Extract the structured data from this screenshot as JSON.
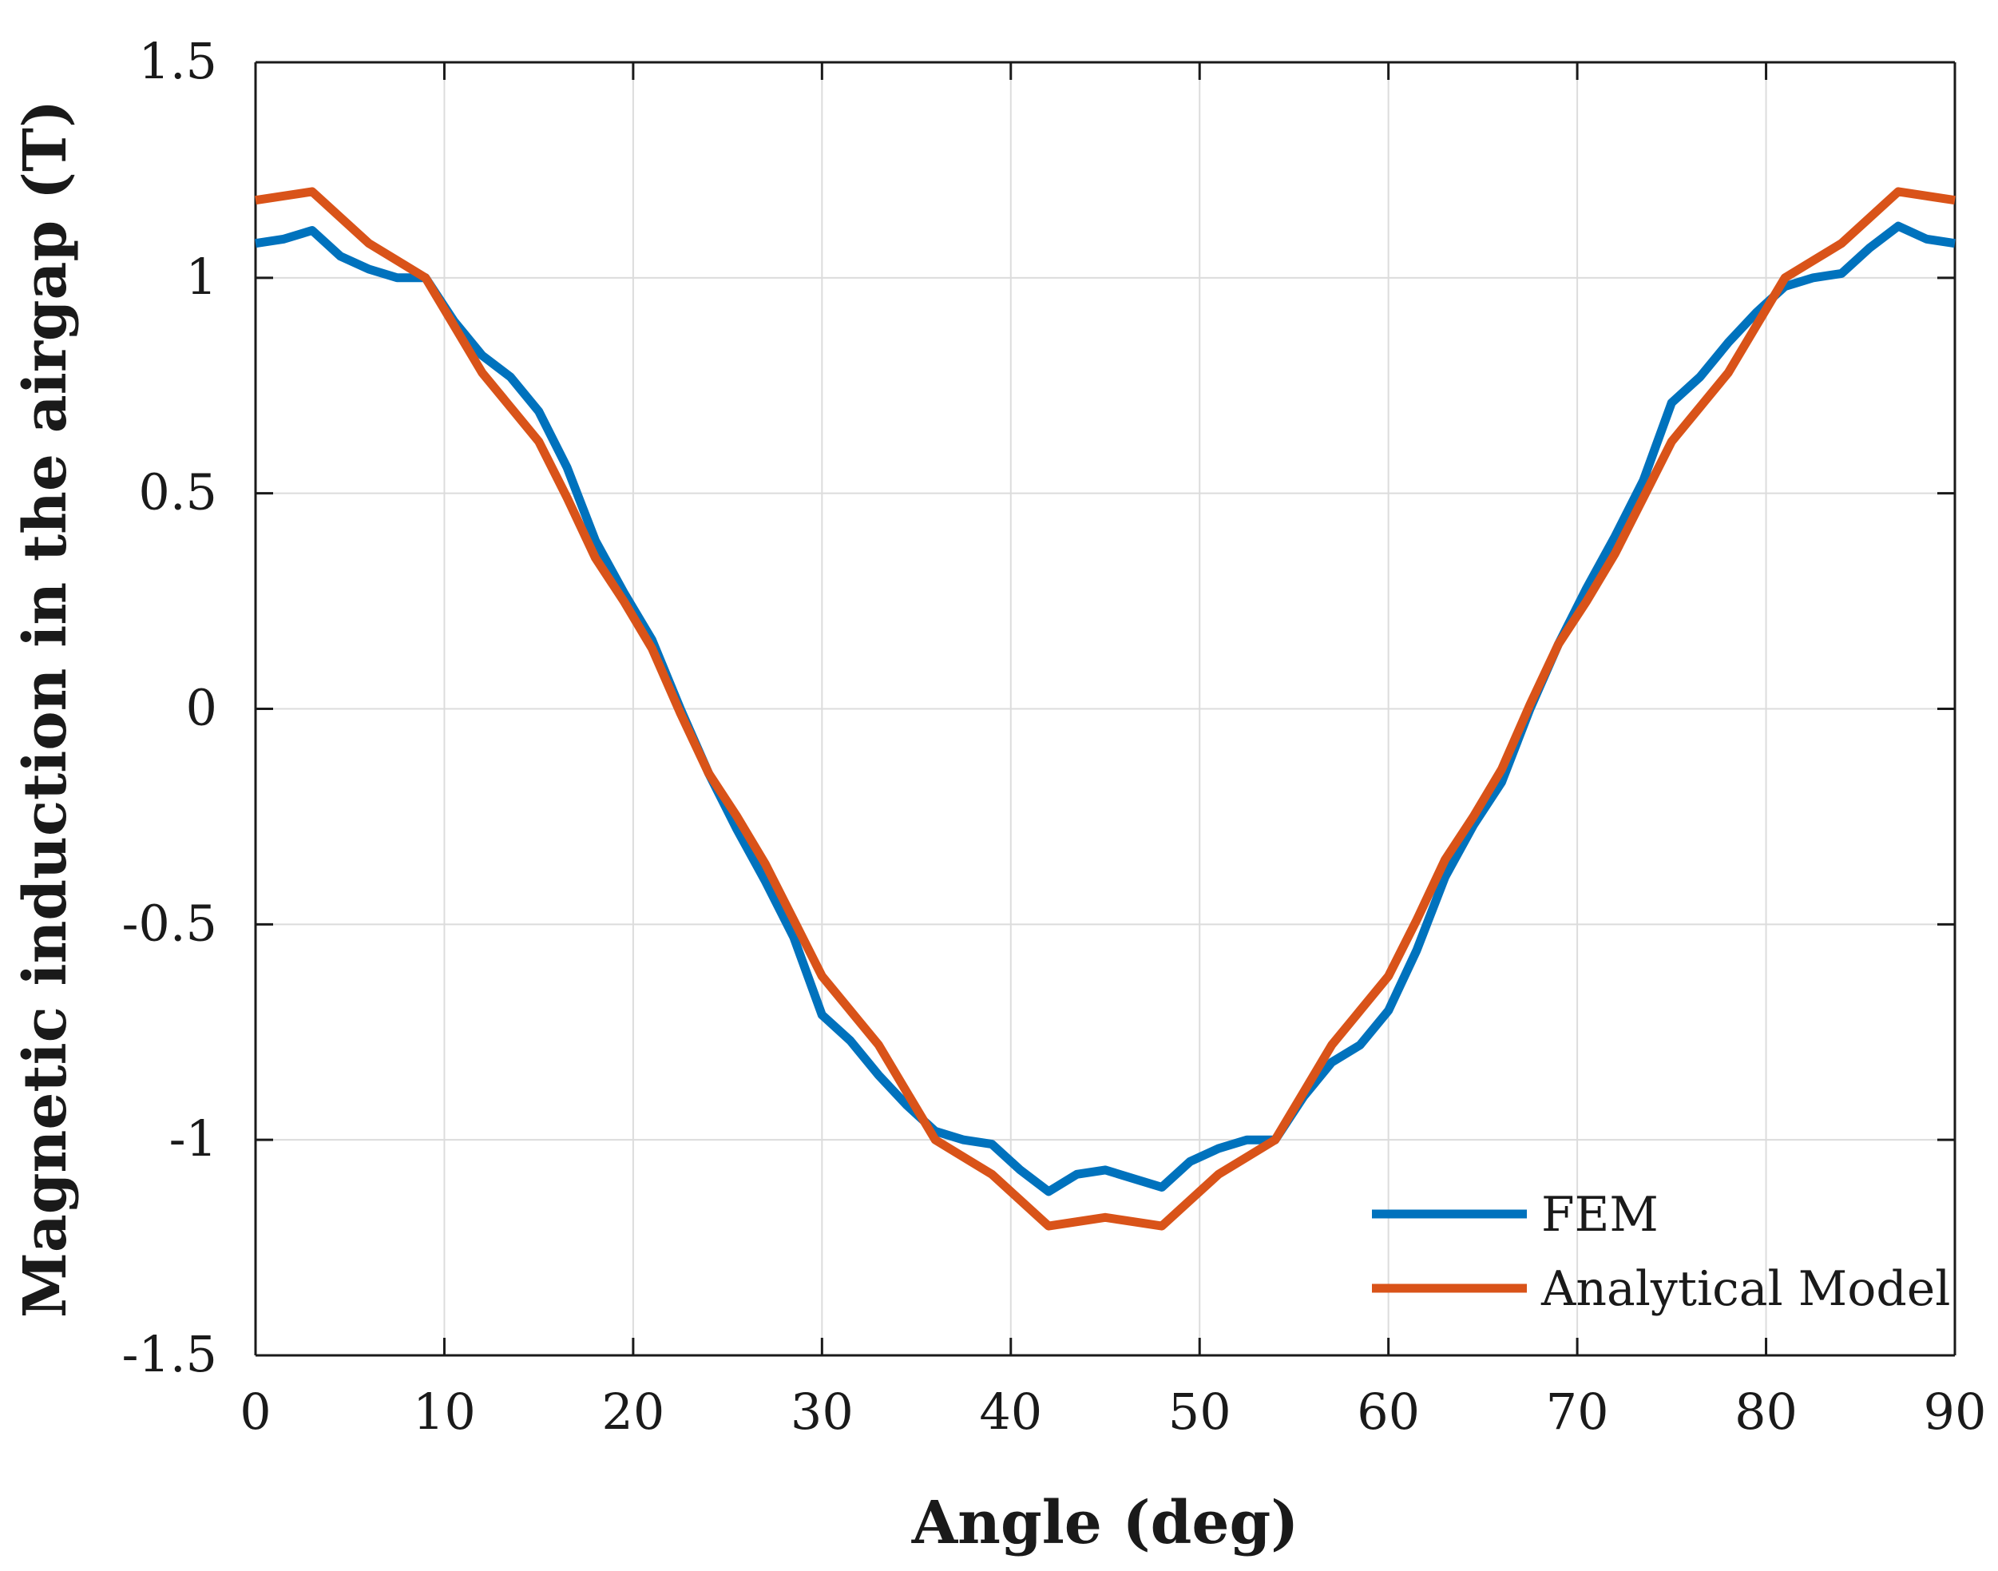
{
  "chart_data": {
    "type": "line",
    "title": "",
    "xlabel": "Angle (deg)",
    "ylabel": "Magnetic induction in the airgap (T)",
    "xlim": [
      0,
      90
    ],
    "ylim": [
      -1.5,
      1.5
    ],
    "xticks": [
      0,
      10,
      20,
      30,
      40,
      50,
      60,
      70,
      80,
      90
    ],
    "yticks": [
      1.5,
      1,
      0.5,
      0,
      -0.5,
      -1,
      -1.5
    ],
    "xtick_labels": [
      "0",
      "10",
      "20",
      "30",
      "40",
      "50",
      "60",
      "70",
      "80",
      "90"
    ],
    "ytick_labels": [
      "1.5",
      "1",
      "0.5",
      "0",
      "-0.5",
      "-1",
      "-1.5"
    ],
    "grid": true,
    "legend_position": "bottom-right",
    "series": [
      {
        "name": "FEM",
        "color": "#0072BD",
        "x": [
          0,
          1.5,
          3,
          4.5,
          6,
          7.5,
          9,
          10.5,
          12,
          13.5,
          15,
          16.5,
          18,
          19.5,
          21,
          22.5,
          24,
          25.5,
          27,
          28.5,
          30,
          31.5,
          33,
          34.5,
          36,
          37.5,
          39,
          40.5,
          42,
          43.5,
          45,
          46.5,
          48,
          49.5,
          51,
          52.5,
          54,
          55.5,
          57,
          58.5,
          60,
          61.5,
          63,
          64.5,
          66,
          67.5,
          69,
          70.5,
          72,
          73.5,
          75,
          76.5,
          78,
          79.5,
          81,
          82.5,
          84,
          85.5,
          87,
          88.5,
          90
        ],
        "y": [
          1.08,
          1.09,
          1.11,
          1.05,
          1.02,
          1.0,
          1.0,
          0.9,
          0.82,
          0.77,
          0.69,
          0.56,
          0.39,
          0.27,
          0.16,
          0.0,
          -0.15,
          -0.28,
          -0.4,
          -0.53,
          -0.71,
          -0.77,
          -0.85,
          -0.92,
          -0.98,
          -1.0,
          -1.01,
          -1.07,
          -1.12,
          -1.08,
          -1.07,
          -1.09,
          -1.11,
          -1.05,
          -1.02,
          -1.0,
          -1.0,
          -0.9,
          -0.82,
          -0.78,
          -0.7,
          -0.56,
          -0.39,
          -0.27,
          -0.17,
          0.0,
          0.15,
          0.28,
          0.4,
          0.53,
          0.71,
          0.77,
          0.85,
          0.92,
          0.98,
          1.0,
          1.01,
          1.07,
          1.12,
          1.09,
          1.08
        ]
      },
      {
        "name": "Analytical Model",
        "color": "#D95319",
        "x": [
          0,
          1.5,
          3,
          4.5,
          6,
          7.5,
          9,
          10.5,
          12,
          13.5,
          15,
          16.5,
          18,
          19.5,
          21,
          22.5,
          24,
          25.5,
          27,
          28.5,
          30,
          31.5,
          33,
          34.5,
          36,
          37.5,
          39,
          40.5,
          42,
          43.5,
          45,
          46.5,
          48,
          49.5,
          51,
          52.5,
          54,
          55.5,
          57,
          58.5,
          60,
          61.5,
          63,
          64.5,
          66,
          67.5,
          69,
          70.5,
          72,
          73.5,
          75,
          76.5,
          78,
          79.5,
          81,
          82.5,
          84,
          85.5,
          87,
          88.5,
          90
        ],
        "y": [
          1.18,
          1.19,
          1.2,
          1.14,
          1.08,
          1.04,
          1.0,
          0.89,
          0.78,
          0.7,
          0.62,
          0.49,
          0.35,
          0.25,
          0.14,
          -0.01,
          -0.15,
          -0.25,
          -0.36,
          -0.49,
          -0.62,
          -0.7,
          -0.78,
          -0.89,
          -1.0,
          -1.04,
          -1.08,
          -1.14,
          -1.2,
          -1.19,
          -1.18,
          -1.19,
          -1.2,
          -1.14,
          -1.08,
          -1.04,
          -1.0,
          -0.89,
          -0.78,
          -0.7,
          -0.62,
          -0.49,
          -0.35,
          -0.25,
          -0.14,
          0.01,
          0.15,
          0.25,
          0.36,
          0.49,
          0.62,
          0.7,
          0.78,
          0.89,
          1.0,
          1.04,
          1.08,
          1.14,
          1.2,
          1.19,
          1.18
        ]
      }
    ]
  }
}
